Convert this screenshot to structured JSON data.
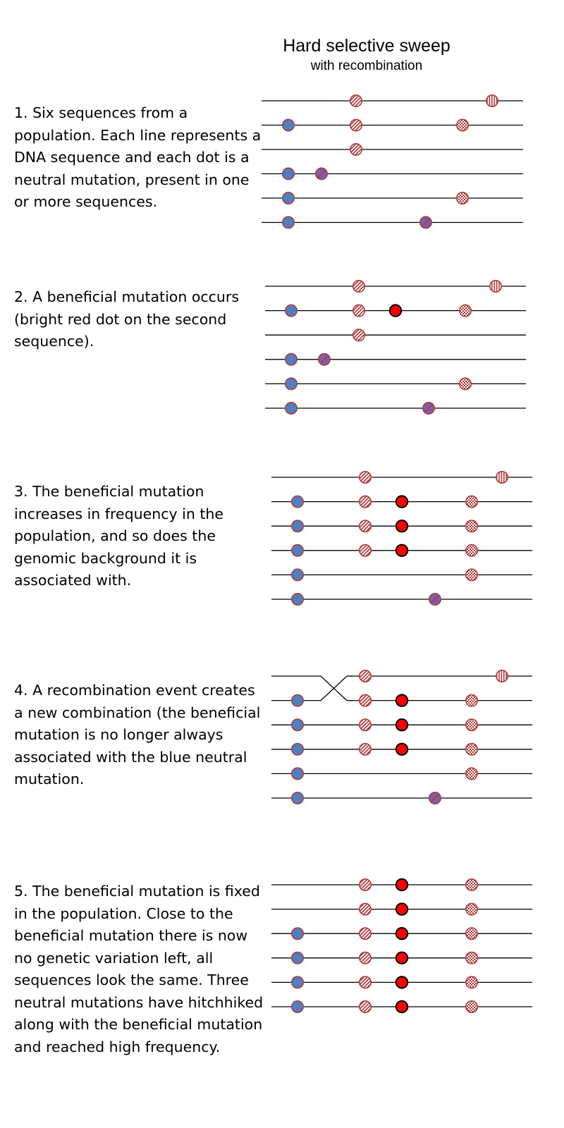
{
  "title": "Hard selective sweep",
  "subtitle": "with recombination",
  "steps": [
    {
      "text": "1. Six sequences from a population. Each line represents a DNA sequence and each dot is a neutral mutation, present in one or more sequences.",
      "recombination": false,
      "sequences": [
        [
          "diag",
          "vstripe"
        ],
        [
          "blue",
          "diag",
          "checker"
        ],
        [
          "diag"
        ],
        [
          "blue",
          "blue-purple"
        ],
        [
          "blue",
          "checker"
        ],
        [
          "blue",
          "blue-purple"
        ]
      ]
    },
    {
      "text": "2. A beneficial mutation occurs (bright red dot on the second sequence).",
      "recombination": false,
      "sequences": [
        [
          "diag",
          "vstripe"
        ],
        [
          "blue",
          "diag",
          "red",
          "checker"
        ],
        [
          "diag"
        ],
        [
          "blue",
          "blue-purple"
        ],
        [
          "blue",
          "checker"
        ],
        [
          "blue",
          "blue-purple"
        ]
      ]
    },
    {
      "text": "3. The beneficial mutation increases in frequency in the population, and so does the genomic background it is associated with.",
      "recombination": false,
      "sequences": [
        [
          "diag",
          "vstripe"
        ],
        [
          "blue",
          "diag",
          "red",
          "checker"
        ],
        [
          "blue",
          "diag",
          "red",
          "checker"
        ],
        [
          "blue",
          "diag",
          "red",
          "checker"
        ],
        [
          "blue",
          "checker"
        ],
        [
          "blue",
          "blue-purple"
        ]
      ]
    },
    {
      "text": "4. A recombination event creates a new combination (the beneficial mutation is no longer always associated with the blue neutral mutation.",
      "recombination": true,
      "sequences": [
        [
          "diag",
          "vstripe"
        ],
        [
          "blue",
          "diag",
          "red",
          "checker"
        ],
        [
          "blue",
          "diag",
          "red",
          "checker"
        ],
        [
          "blue",
          "diag",
          "red",
          "checker"
        ],
        [
          "blue",
          "checker"
        ],
        [
          "blue",
          "blue-purple"
        ]
      ]
    },
    {
      "text": "5. The beneficial mutation is fixed in the population. Close to the beneficial mutation there is now no genetic variation left, all sequences look the same. Three neutral mutations have hitchhiked along with the beneficial mutation and reached high frequency.",
      "recombination": false,
      "sequences": [
        [
          "diag",
          "red",
          "checker"
        ],
        [
          "diag",
          "red",
          "checker"
        ],
        [
          "blue",
          "diag",
          "red",
          "checker"
        ],
        [
          "blue",
          "diag",
          "red",
          "checker"
        ],
        [
          "blue",
          "diag",
          "red",
          "checker"
        ],
        [
          "blue",
          "diag",
          "red",
          "checker"
        ]
      ]
    }
  ],
  "colors": {
    "line": "#000000",
    "neutral_outline": "#b03a3a",
    "blue_fill": "#4f7fc0",
    "beneficial_fill": "#ff0000",
    "beneficial_outline": "#000000",
    "purple_fill": "#7a5fa8",
    "hatch": "#b03a3a"
  }
}
